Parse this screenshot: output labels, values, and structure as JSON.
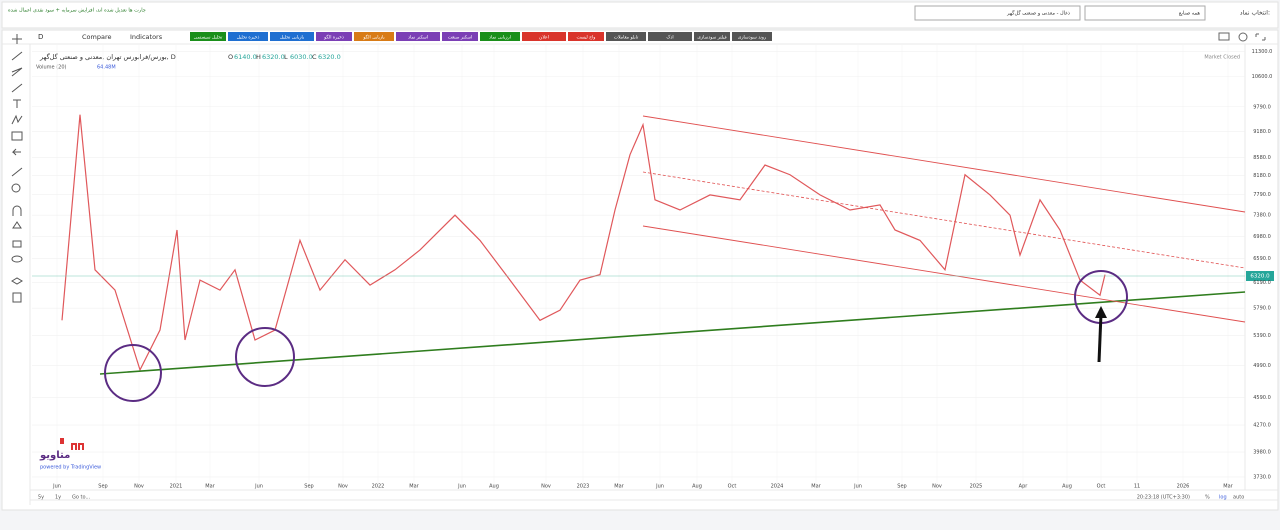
{
  "header": {
    "notice": "چارت ها تعدیل شده اند، افزایش سرمایه + سود نقدی اعمال شده",
    "symbol_label": "انتخاب نماد:",
    "industry": "همه صنایع",
    "symbol": "ذغال - معدنی و صنعتی گل‌گهر"
  },
  "toolbar": {
    "interval": "D",
    "compare": "Compare",
    "indicators": "Indicators",
    "buttons": [
      "تحلیل سیستمی",
      "ذخیره تحلیل",
      "بازیابی تحلیل",
      "ذخیره الگو",
      "بازیابی الگو",
      "اسکنر نماد",
      "اسکنر صنعت",
      "ارزیابی نماد",
      "اعلان",
      "واچ لیست",
      "تابلو معاملات",
      "ادک",
      "فیلتر سودسازی",
      "روند سودسازی"
    ]
  },
  "chart_data": {
    "type": "line",
    "title": "بورس/فرابورس تهران ,معدنی و صنعتی گل‌گهر, D",
    "ohlc": [
      {
        "label": "O",
        "value": "6140.0"
      },
      {
        "label": "H",
        "value": "6320.0"
      },
      {
        "label": "L",
        "value": "6030.0"
      },
      {
        "label": "C",
        "value": "6320.0"
      }
    ],
    "volume_label": "Volume (20)",
    "volume_value": "64.48M",
    "market_status": "Market Closed",
    "x_labels": [
      "Jun",
      "Sep",
      "Nov",
      "2021",
      "Mar",
      "Jun",
      "Sep",
      "Nov",
      "2022",
      "Mar",
      "Jun",
      "Aug",
      "Nov",
      "2023",
      "Mar",
      "Jun",
      "Aug",
      "Oct",
      "2024",
      "Mar",
      "Jun",
      "Sep",
      "Nov",
      "2025",
      "Apr",
      "Aug",
      "Oct",
      "11",
      "2026",
      "Mar"
    ],
    "values": [
      5610,
      9590,
      6400,
      6070,
      4930,
      5470,
      7100,
      5330,
      6230,
      6070,
      6400,
      5330,
      5470,
      6910,
      6070,
      6570,
      6150,
      6400,
      6740,
      7380,
      6910,
      6230,
      5610,
      5760,
      6230,
      6320,
      7480,
      8640,
      9340,
      7680,
      7480,
      7780,
      7680,
      8410,
      8200,
      7780,
      7480,
      7580,
      7100,
      6910,
      6400,
      8200,
      7780,
      7380,
      6650,
      7680,
      7100,
      6230,
      5990,
      6320
    ],
    "color": "#e0585b",
    "log_scale": true,
    "grid": true,
    "ylim": [
      3700,
      11500
    ],
    "yticks": [
      {
        "value": 3730,
        "label": "3730.0"
      },
      {
        "value": 3980,
        "label": "3980.0"
      },
      {
        "value": 4270,
        "label": "4270.0"
      },
      {
        "value": 4590,
        "label": "4590.0"
      },
      {
        "value": 4990,
        "label": "4990.0"
      },
      {
        "value": 5390,
        "label": "5390.0"
      },
      {
        "value": 5790,
        "label": "5790.0"
      },
      {
        "value": 6190,
        "label": "6190.0"
      },
      {
        "value": 6590,
        "label": "6590.0"
      },
      {
        "value": 6980,
        "label": "6980.0"
      },
      {
        "value": 7380,
        "label": "7380.0"
      },
      {
        "value": 7790,
        "label": "7790.0"
      },
      {
        "value": 8180,
        "label": "8180.0"
      },
      {
        "value": 8580,
        "label": "8580.0"
      },
      {
        "value": 9180,
        "label": "9180.0"
      },
      {
        "value": 9790,
        "label": "9790.0"
      },
      {
        "value": 10600,
        "label": "10600.0"
      },
      {
        "value": 11300,
        "label": "11300.0"
      }
    ]
  },
  "footer": {
    "ranges": [
      "5y",
      "1y",
      "Go to..."
    ],
    "clock": "20:23:18 (UTC+3:30)",
    "options": [
      "%",
      "log",
      "auto"
    ],
    "brand": "متاویو",
    "powered": "powered by TradingView"
  }
}
